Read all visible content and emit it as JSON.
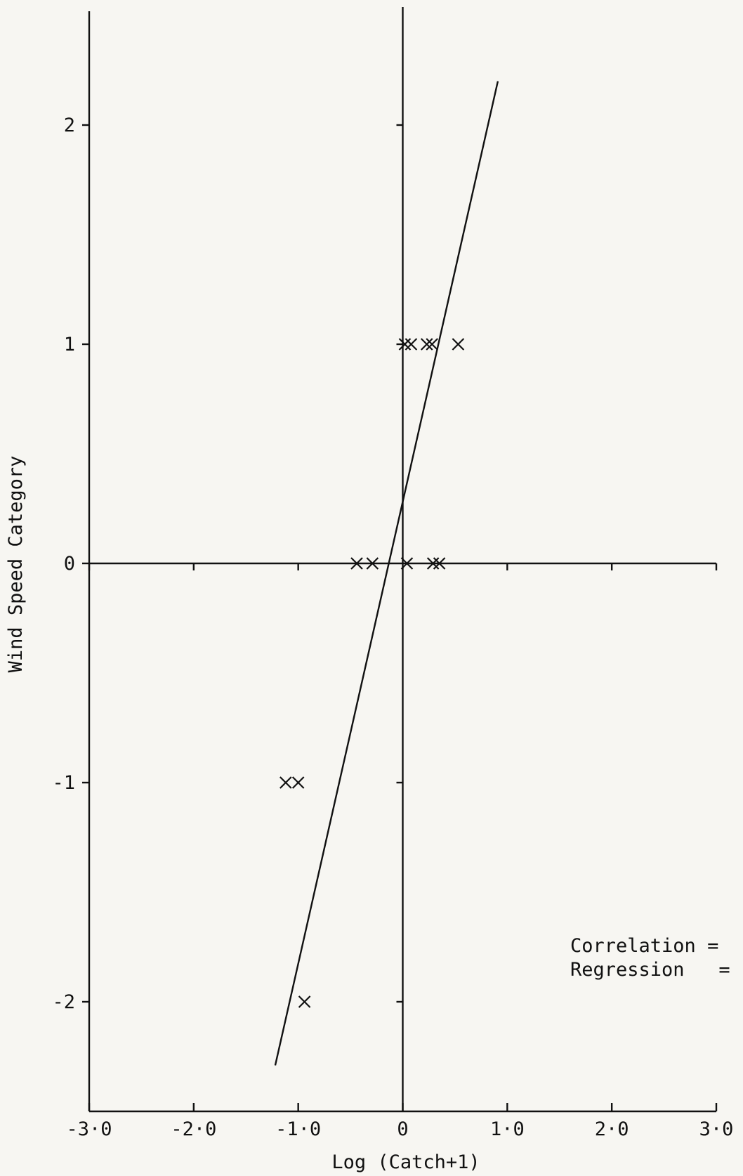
{
  "chart_data": {
    "type": "scatter",
    "title": "",
    "xlabel": "Log (Catch+1)",
    "ylabel": "Wind Speed Category",
    "xlim": [
      -3.0,
      3.0
    ],
    "ylim": [
      -2.5,
      2.5
    ],
    "x_ticks": [
      -3.0,
      -2.0,
      -1.0,
      0,
      1.0,
      2.0,
      3.0
    ],
    "x_tick_labels": [
      "-3·0",
      "-2·0",
      "-1·0",
      "0",
      "1·0",
      "2·0",
      "3·0"
    ],
    "y_ticks": [
      -2,
      -1,
      0,
      1,
      2
    ],
    "y_tick_labels": [
      "-2",
      "-1",
      "0",
      "1",
      "2"
    ],
    "grid": false,
    "points": [
      {
        "x": 0.02,
        "y": 1
      },
      {
        "x": 0.08,
        "y": 1
      },
      {
        "x": 0.23,
        "y": 1
      },
      {
        "x": 0.28,
        "y": 1
      },
      {
        "x": 0.53,
        "y": 1
      },
      {
        "x": -0.44,
        "y": 0
      },
      {
        "x": -0.29,
        "y": 0
      },
      {
        "x": 0.04,
        "y": 0
      },
      {
        "x": 0.29,
        "y": 0
      },
      {
        "x": 0.35,
        "y": 0
      },
      {
        "x": -1.12,
        "y": -1
      },
      {
        "x": -1.0,
        "y": -1
      },
      {
        "x": -0.94,
        "y": -2
      }
    ],
    "regression_line": {
      "x": [
        -1.22,
        0.91
      ],
      "y": [
        -2.29,
        2.2
      ]
    },
    "annotations": [
      "Correlation =",
      "Regression   ="
    ]
  }
}
